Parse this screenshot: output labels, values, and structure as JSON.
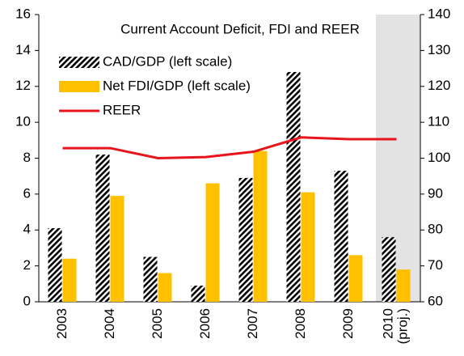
{
  "chart_data": {
    "type": "bar",
    "title": "Current Account Deficit, FDI and REER",
    "categories": [
      "2003",
      "2004",
      "2005",
      "2006",
      "2007",
      "2008",
      "2009",
      "2010 (proj.)"
    ],
    "series": [
      {
        "name": "CAD/GDP (left scale)",
        "color": "#000000",
        "values": [
          4.1,
          8.2,
          2.5,
          0.9,
          6.9,
          12.8,
          7.3,
          3.6
        ]
      },
      {
        "name": "Net FDI/GDP (left scale)",
        "color": "#ffc000",
        "values": [
          2.4,
          5.9,
          1.6,
          6.6,
          8.4,
          6.1,
          2.6,
          1.8
        ]
      },
      {
        "name": "REER",
        "color": "#e8141c",
        "type": "line",
        "axis": "y2",
        "values": [
          102.8,
          102.8,
          100.0,
          100.3,
          101.8,
          105.8,
          105.3,
          105.3
        ]
      }
    ],
    "ylim": [
      0,
      16
    ],
    "yticks": [
      0,
      2,
      4,
      6,
      8,
      10,
      12,
      14,
      16
    ],
    "y2lim": [
      60,
      140
    ],
    "y2ticks": [
      60,
      70,
      80,
      90,
      100,
      110,
      120,
      130,
      140
    ]
  }
}
